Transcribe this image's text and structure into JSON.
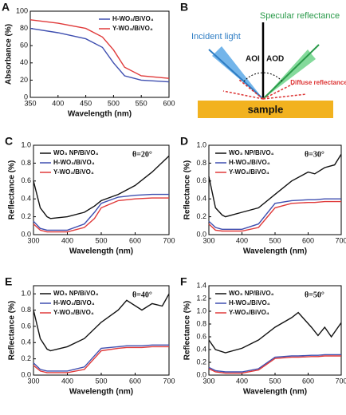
{
  "chart_data": [
    {
      "type": "line",
      "panel": "A",
      "xlabel": "Wavelength (nm)",
      "ylabel": "Absorbance (%)",
      "x": [
        350,
        400,
        450,
        480,
        500,
        520,
        550,
        600
      ],
      "xlim": [
        350,
        600
      ],
      "xticks": [
        350,
        400,
        450,
        500,
        550,
        600
      ],
      "ylim": [
        0,
        100
      ],
      "yticks": [
        0,
        20,
        40,
        60,
        80,
        100
      ],
      "legend": "upper right",
      "series": [
        {
          "name": "H-WO₃/BiVO₄",
          "color": "#3f4fb0",
          "values": [
            80,
            75,
            68,
            58,
            40,
            25,
            20,
            18
          ]
        },
        {
          "name": "Y-WO₃/BiVO₄",
          "color": "#e03a3a",
          "values": [
            90,
            86,
            80,
            70,
            55,
            35,
            25,
            22
          ]
        }
      ]
    },
    {
      "type": "line",
      "panel": "C",
      "xlabel": "Wavelength (nm)",
      "ylabel": "Reflectance (%)",
      "annotation": "θ=20°",
      "x": [
        300,
        320,
        340,
        350,
        400,
        450,
        480,
        500,
        550,
        600,
        650,
        700
      ],
      "xlim": [
        300,
        700
      ],
      "xticks": [
        300,
        400,
        500,
        600,
        700
      ],
      "ylim": [
        0,
        1.0
      ],
      "yticks": [
        {
          "value": 0,
          "label": "0.0"
        },
        0.2,
        0.4,
        0.6,
        0.8,
        {
          "value": 1,
          "label": "1.0"
        }
      ],
      "legend": "upper left",
      "series": [
        {
          "name": "WO₃ NP/BiVO₄",
          "color": "#111111",
          "values": [
            0.6,
            0.3,
            0.2,
            0.18,
            0.2,
            0.25,
            0.32,
            0.38,
            0.45,
            0.55,
            0.7,
            0.88
          ]
        },
        {
          "name": "H-WO₃/BiVO₄",
          "color": "#3f4fb0",
          "values": [
            0.15,
            0.07,
            0.05,
            0.05,
            0.05,
            0.12,
            0.25,
            0.35,
            0.42,
            0.44,
            0.45,
            0.45
          ]
        },
        {
          "name": "Y-WO₃/BiVO₄",
          "color": "#e03a3a",
          "values": [
            0.12,
            0.05,
            0.03,
            0.03,
            0.03,
            0.08,
            0.18,
            0.3,
            0.38,
            0.4,
            0.41,
            0.41
          ]
        }
      ]
    },
    {
      "type": "line",
      "panel": "D",
      "xlabel": "Wavelength (nm)",
      "ylabel": "Reflectance (%)",
      "annotation": "θ=30°",
      "x": [
        300,
        320,
        340,
        350,
        400,
        450,
        500,
        550,
        600,
        620,
        650,
        680,
        700
      ],
      "xlim": [
        300,
        700
      ],
      "xticks": [
        300,
        400,
        500,
        600,
        700
      ],
      "ylim": [
        0,
        1.0
      ],
      "yticks": [
        {
          "value": 0,
          "label": "0.0"
        },
        0.2,
        0.4,
        0.6,
        0.8,
        {
          "value": 1,
          "label": "1.0"
        }
      ],
      "legend": "upper left",
      "series": [
        {
          "name": "WO₃ NP/BiVO₄",
          "color": "#111111",
          "values": [
            0.65,
            0.3,
            0.22,
            0.2,
            0.25,
            0.3,
            0.45,
            0.6,
            0.7,
            0.68,
            0.75,
            0.78,
            0.9
          ]
        },
        {
          "name": "H-WO₃/BiVO₄",
          "color": "#3f4fb0",
          "values": [
            0.15,
            0.08,
            0.06,
            0.06,
            0.06,
            0.12,
            0.35,
            0.38,
            0.39,
            0.39,
            0.4,
            0.4,
            0.4
          ]
        },
        {
          "name": "Y-WO₃/BiVO₄",
          "color": "#e03a3a",
          "values": [
            0.12,
            0.05,
            0.04,
            0.04,
            0.04,
            0.08,
            0.3,
            0.35,
            0.36,
            0.36,
            0.37,
            0.37,
            0.37
          ]
        }
      ]
    },
    {
      "type": "line",
      "panel": "E",
      "xlabel": "Wavelength (nm)",
      "ylabel": "Reflectance (%)",
      "annotation": "θ=40°",
      "x": [
        300,
        320,
        340,
        350,
        400,
        450,
        500,
        550,
        575,
        620,
        650,
        680,
        700
      ],
      "xlim": [
        300,
        700
      ],
      "xticks": [
        300,
        400,
        500,
        600,
        700
      ],
      "ylim": [
        0,
        1.1
      ],
      "yticks": [
        {
          "value": 0,
          "label": "0.0"
        },
        0.2,
        0.4,
        0.6,
        0.8,
        {
          "value": 1,
          "label": "1.0"
        }
      ],
      "legend": "upper left",
      "series": [
        {
          "name": "WO₃ NP/BiVO₄",
          "color": "#111111",
          "values": [
            0.8,
            0.45,
            0.32,
            0.3,
            0.35,
            0.45,
            0.65,
            0.8,
            0.92,
            0.8,
            0.88,
            0.85,
            1.0
          ]
        },
        {
          "name": "H-WO₃/BiVO₄",
          "color": "#3f4fb0",
          "values": [
            0.15,
            0.07,
            0.05,
            0.05,
            0.05,
            0.1,
            0.33,
            0.35,
            0.36,
            0.36,
            0.37,
            0.37,
            0.37
          ]
        },
        {
          "name": "Y-WO₃/BiVO₄",
          "color": "#e03a3a",
          "values": [
            0.12,
            0.05,
            0.03,
            0.03,
            0.03,
            0.07,
            0.3,
            0.33,
            0.34,
            0.34,
            0.35,
            0.35,
            0.35
          ]
        }
      ]
    },
    {
      "type": "line",
      "panel": "F",
      "xlabel": "Wavelength (nm)",
      "ylabel": "Reflectance (%)",
      "annotation": "θ=50°",
      "x": [
        300,
        320,
        350,
        400,
        450,
        500,
        550,
        570,
        610,
        630,
        650,
        670,
        700
      ],
      "xlim": [
        300,
        700
      ],
      "xticks": [
        300,
        400,
        500,
        600,
        700
      ],
      "ylim": [
        0,
        1.4
      ],
      "yticks": [
        {
          "value": 0,
          "label": "0.0"
        },
        0.2,
        0.4,
        0.6,
        0.8,
        {
          "value": 1,
          "label": "1.0"
        },
        1.2,
        1.4
      ],
      "legend": "upper left",
      "series": [
        {
          "name": "WO₃ NP/BiVO₄",
          "color": "#111111",
          "values": [
            0.55,
            0.4,
            0.35,
            0.42,
            0.55,
            0.75,
            0.9,
            0.98,
            0.75,
            0.62,
            0.75,
            0.6,
            0.82
          ]
        },
        {
          "name": "H-WO₃/BiVO₄",
          "color": "#3f4fb0",
          "values": [
            0.12,
            0.07,
            0.05,
            0.05,
            0.1,
            0.28,
            0.3,
            0.3,
            0.31,
            0.31,
            0.32,
            0.32,
            0.32
          ]
        },
        {
          "name": "Y-WO₃/BiVO₄",
          "color": "#e03a3a",
          "values": [
            0.1,
            0.05,
            0.03,
            0.03,
            0.08,
            0.26,
            0.28,
            0.28,
            0.29,
            0.29,
            0.3,
            0.3,
            0.3
          ]
        }
      ]
    }
  ],
  "diagram": {
    "panel": "B",
    "incident": "Incident light",
    "aoi": "AOI",
    "aod": "AOD",
    "specular": "Specular reflectance",
    "diffuse": "Diffuse reflectance",
    "sample": "sample"
  }
}
